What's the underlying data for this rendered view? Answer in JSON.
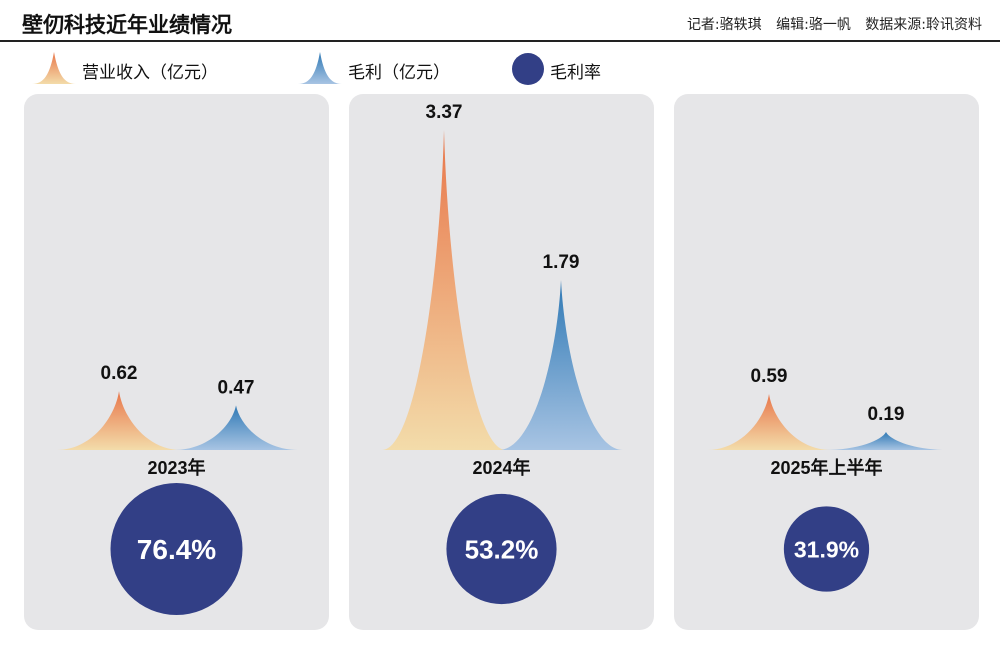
{
  "title": "壁仞科技近年业绩情况",
  "credits": {
    "reporter": "记者:骆轶琪",
    "editor": "编辑:骆一帆",
    "source": "数据来源:聆讯资料"
  },
  "legend": {
    "revenue": "营业收入（亿元）",
    "gross_profit": "毛利（亿元）",
    "gross_margin": "毛利率"
  },
  "colors": {
    "revenue_top": "#e8764a",
    "revenue_bottom": "#f3dcaa",
    "profit_top": "#2f79b5",
    "profit_bottom": "#a8c4e3",
    "margin_circle": "#323f86",
    "panel": "#e6e6e8"
  },
  "chart_data": {
    "type": "bar",
    "categories": [
      "2023年",
      "2024年",
      "2025年上半年"
    ],
    "series": [
      {
        "name": "营业收入（亿元）",
        "values": [
          0.62,
          3.37,
          0.59
        ],
        "labels": [
          "0.62",
          "3.37",
          "0.59"
        ]
      },
      {
        "name": "毛利（亿元）",
        "values": [
          0.47,
          1.79,
          0.19
        ],
        "labels": [
          "0.47",
          "1.79",
          "0.19"
        ]
      },
      {
        "name": "毛利率",
        "values": [
          76.4,
          53.2,
          31.9
        ],
        "labels": [
          "76.4%",
          "53.2%",
          "31.9%"
        ]
      }
    ]
  }
}
